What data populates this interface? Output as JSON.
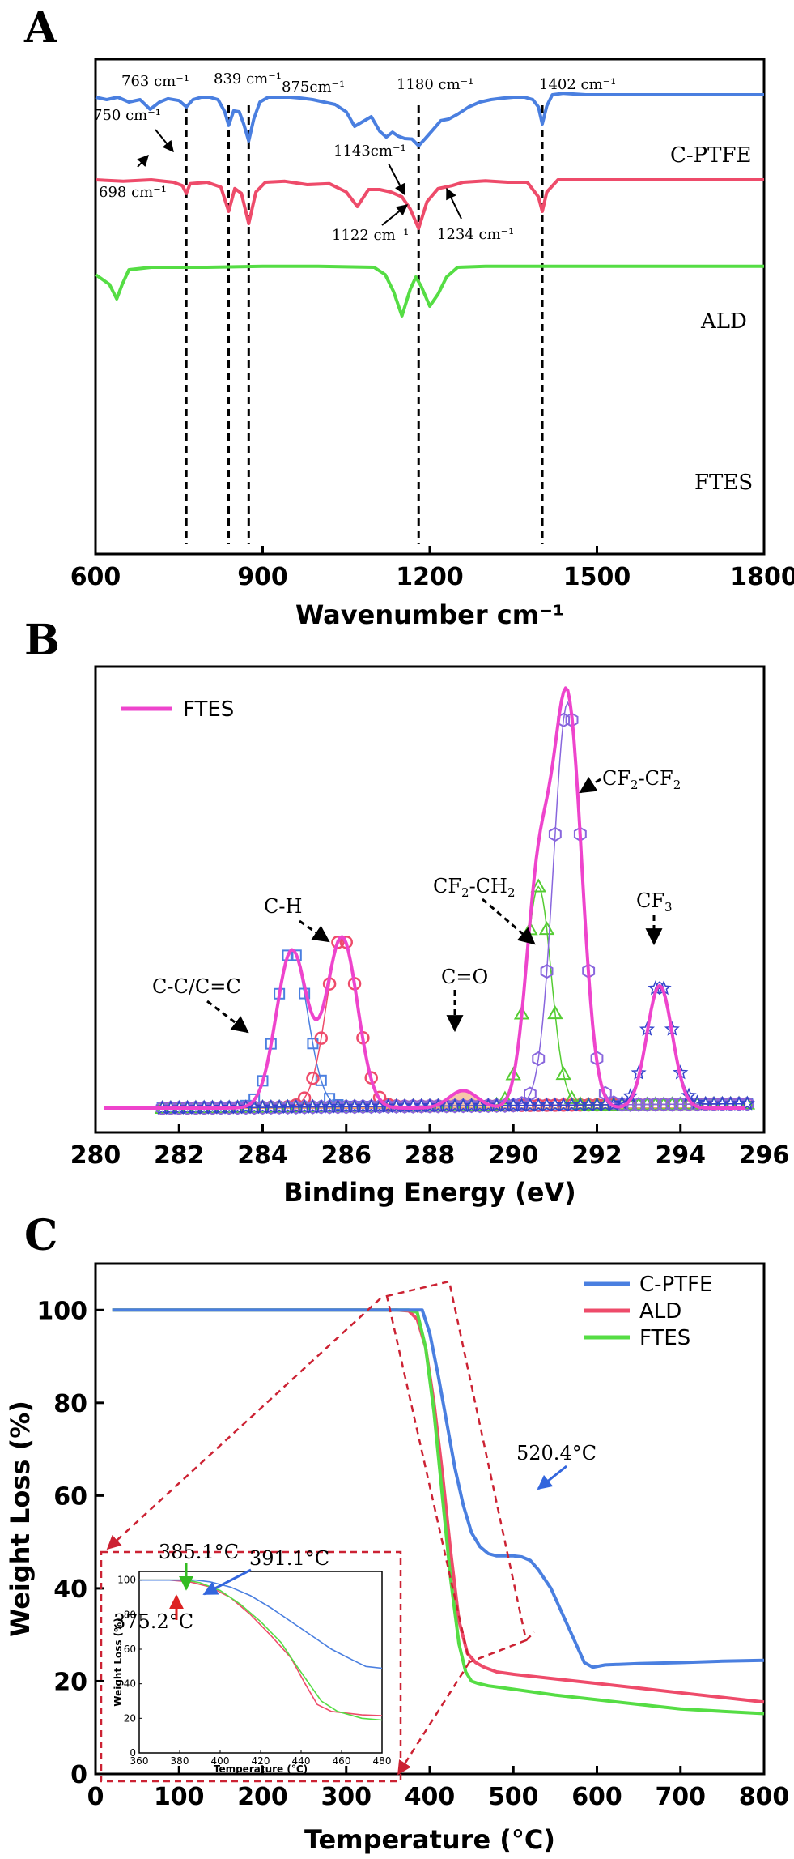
{
  "chart_data": [
    {
      "panel": "A",
      "type": "line",
      "xlabel": "Wavenumber cm⁻¹",
      "ylabel": "",
      "xlim": [
        600,
        1800
      ],
      "xticks": [
        600,
        900,
        1200,
        1500,
        1800
      ],
      "series": [
        {
          "name": "C-PTFE",
          "color": "#4a7fe0",
          "offset": 0.0,
          "x": [
            600,
            620,
            640,
            660,
            680,
            698,
            715,
            730,
            750,
            763,
            775,
            790,
            805,
            820,
            832,
            839,
            848,
            858,
            866,
            875,
            884,
            895,
            910,
            930,
            950,
            970,
            990,
            1010,
            1030,
            1050,
            1065,
            1080,
            1095,
            1110,
            1122,
            1133,
            1143,
            1155,
            1168,
            1180,
            1192,
            1205,
            1220,
            1234,
            1250,
            1270,
            1290,
            1310,
            1330,
            1350,
            1370,
            1385,
            1395,
            1402,
            1410,
            1420,
            1440,
            1480,
            1550,
            1650,
            1800
          ],
          "y": [
            1.0,
            0.95,
            1.0,
            0.9,
            0.95,
            0.75,
            0.9,
            0.97,
            0.93,
            0.8,
            0.95,
            1.0,
            1.0,
            0.95,
            0.7,
            0.42,
            0.72,
            0.7,
            0.45,
            0.1,
            0.55,
            0.9,
            1.0,
            1.0,
            1.0,
            0.98,
            0.95,
            0.9,
            0.85,
            0.7,
            0.4,
            0.5,
            0.6,
            0.3,
            0.18,
            0.28,
            0.2,
            0.15,
            0.14,
            0.0,
            0.15,
            0.32,
            0.52,
            0.55,
            0.65,
            0.8,
            0.9,
            0.95,
            0.98,
            1.0,
            1.0,
            0.95,
            0.8,
            0.45,
            0.82,
            1.05,
            1.08,
            1.05,
            1.05,
            1.05,
            1.05
          ]
        },
        {
          "name": "ALD",
          "color": "#ee4b6a",
          "offset": -1.7,
          "x": [
            600,
            650,
            700,
            740,
            756,
            763,
            770,
            800,
            825,
            839,
            850,
            862,
            875,
            888,
            905,
            940,
            980,
            1020,
            1050,
            1070,
            1090,
            1110,
            1130,
            1150,
            1165,
            1180,
            1195,
            1215,
            1240,
            1260,
            1300,
            1340,
            1375,
            1395,
            1402,
            1410,
            1430,
            1500,
            1650,
            1800
          ],
          "y": [
            1.0,
            0.97,
            1.0,
            0.95,
            0.88,
            0.72,
            0.92,
            0.95,
            0.85,
            0.35,
            0.82,
            0.72,
            0.1,
            0.75,
            0.95,
            0.97,
            0.9,
            0.92,
            0.75,
            0.45,
            0.8,
            0.8,
            0.75,
            0.65,
            0.4,
            0.0,
            0.55,
            0.82,
            0.88,
            0.95,
            0.98,
            0.95,
            0.95,
            0.65,
            0.35,
            0.75,
            1.0,
            1.0,
            1.0,
            1.0
          ]
        },
        {
          "name": "FTES",
          "color": "#55dd44",
          "offset": -3.5,
          "x": [
            600,
            625,
            638,
            648,
            660,
            700,
            800,
            900,
            1000,
            1100,
            1120,
            1135,
            1150,
            1165,
            1175,
            1185,
            1200,
            1215,
            1230,
            1250,
            1300,
            1400,
            1500,
            1650,
            1800
          ],
          "y": [
            0.85,
            0.65,
            0.35,
            0.65,
            0.95,
            1.0,
            1.0,
            1.02,
            1.02,
            1.0,
            0.85,
            0.5,
            0.0,
            0.55,
            0.8,
            0.6,
            0.2,
            0.45,
            0.8,
            1.0,
            1.02,
            1.02,
            1.02,
            1.02,
            1.02
          ]
        }
      ],
      "reference_lines": [
        763,
        839,
        875,
        1180,
        1402
      ],
      "annotations": {
        "a_698": "698 cm⁻¹",
        "a_750": "750 cm⁻¹",
        "a_763": "763 cm⁻¹",
        "a_839": "839 cm⁻¹",
        "a_875": "875cm⁻¹",
        "a_1122": "1122 cm⁻¹",
        "a_1143": "1143cm⁻¹",
        "a_1180": "1180 cm⁻¹",
        "a_1234": "1234 cm⁻¹",
        "a_1402": "1402 cm⁻¹"
      }
    },
    {
      "panel": "B",
      "type": "line",
      "xlabel": "Binding Energy (eV)",
      "ylabel": "",
      "xlim": [
        280,
        296
      ],
      "xticks": [
        280,
        282,
        284,
        286,
        288,
        290,
        292,
        294,
        296
      ],
      "legend": [
        "FTES"
      ],
      "envelope": {
        "name": "FTES",
        "color": "#ee44cc"
      },
      "components": [
        {
          "name": "C-C/C=C",
          "center": 284.7,
          "height": 0.36,
          "width": 0.55,
          "color": "#4a7fe0",
          "marker": "square"
        },
        {
          "name": "C-H",
          "center": 285.9,
          "height": 0.39,
          "width": 0.55,
          "color": "#ee4b6a",
          "marker": "circle"
        },
        {
          "name": "C=O",
          "center": 288.8,
          "height": 0.04,
          "width": 0.5,
          "color": "#f0a070",
          "marker": "fill"
        },
        {
          "name": "CF2-CH2",
          "center": 290.6,
          "height": 0.5,
          "width": 0.45,
          "color": "#55cc33",
          "marker": "triangle"
        },
        {
          "name": "CF2-CF2",
          "center": 291.3,
          "height": 0.92,
          "width": 0.5,
          "color": "#8866dd",
          "marker": "hexagon"
        },
        {
          "name": "CF3",
          "center": 293.5,
          "height": 0.28,
          "width": 0.45,
          "color": "#3344cc",
          "marker": "star"
        }
      ],
      "labels": {
        "cc": "C-C/C=C",
        "ch": "C-H",
        "co": "C=O",
        "cf2ch2_a": "CF",
        "cf2ch2_b": "2",
        "cf2ch2_c": "-CH",
        "cf2ch2_d": "2",
        "cf2cf2_a": "CF",
        "cf2cf2_b": "2",
        "cf2cf2_c": "-CF",
        "cf2cf2_d": "2",
        "cf3_a": "CF",
        "cf3_b": "3"
      }
    },
    {
      "panel": "C",
      "type": "line",
      "xlabel": "Temperature (°C)",
      "ylabel": "Weight Loss (%)",
      "xlim": [
        0,
        800
      ],
      "ylim": [
        0,
        110
      ],
      "xticks": [
        0,
        100,
        200,
        300,
        400,
        500,
        600,
        700,
        800
      ],
      "yticks": [
        0,
        20,
        40,
        60,
        80,
        100
      ],
      "legend": [
        "C-PTFE",
        "ALD",
        "FTES"
      ],
      "series": [
        {
          "name": "C-PTFE",
          "color": "#4a7fe0",
          "x": [
            20,
            100,
            200,
            300,
            370,
            385,
            391,
            400,
            410,
            420,
            430,
            440,
            450,
            460,
            470,
            480,
            490,
            500,
            510,
            520.4,
            530,
            545,
            560,
            575,
            585,
            595,
            610,
            650,
            700,
            750,
            800
          ],
          "y": [
            100,
            100,
            100,
            100,
            100,
            100,
            100,
            95,
            86,
            76,
            66,
            58,
            52,
            49,
            47.5,
            47,
            47,
            47,
            46.8,
            46,
            44,
            40,
            34,
            28,
            24,
            23,
            23.5,
            23.8,
            24,
            24.3,
            24.5
          ]
        },
        {
          "name": "ALD",
          "color": "#ee4b6a",
          "x": [
            20,
            100,
            200,
            300,
            360,
            375,
            385,
            395,
            405,
            415,
            425,
            435,
            445,
            455,
            465,
            480,
            500,
            550,
            600,
            650,
            700,
            750,
            800
          ],
          "y": [
            100,
            100,
            100,
            100,
            100,
            99.8,
            98,
            92,
            80,
            65,
            48,
            33,
            26,
            24,
            23,
            22,
            21.5,
            20.5,
            19.5,
            18.5,
            17.5,
            16.5,
            15.5
          ]
        },
        {
          "name": "FTES",
          "color": "#55dd44",
          "x": [
            20,
            100,
            200,
            300,
            360,
            375,
            385,
            395,
            405,
            415,
            425,
            435,
            443,
            450,
            458,
            470,
            490,
            550,
            600,
            650,
            700,
            750,
            800
          ],
          "y": [
            100,
            100,
            100,
            100,
            100,
            100,
            99.5,
            92,
            78,
            60,
            42,
            28,
            22,
            20,
            19.5,
            19,
            18.5,
            17,
            16,
            15,
            14,
            13.5,
            13
          ]
        }
      ],
      "annotations": {
        "t520": "520.4°C",
        "t385": "385.1°C",
        "t391": "391.1°C",
        "t375": "375.2°C"
      },
      "inset": {
        "xlabel": "Temperature (°C)",
        "ylabel": "Weight Loss (%)",
        "xlim": [
          360,
          480
        ],
        "ylim": [
          0,
          105
        ],
        "xticks": [
          360,
          380,
          400,
          420,
          440,
          460,
          480
        ],
        "yticks": [
          0,
          20,
          40,
          60,
          80,
          100
        ]
      }
    }
  ],
  "panels": {
    "a": "A",
    "b": "B",
    "c": "C"
  }
}
